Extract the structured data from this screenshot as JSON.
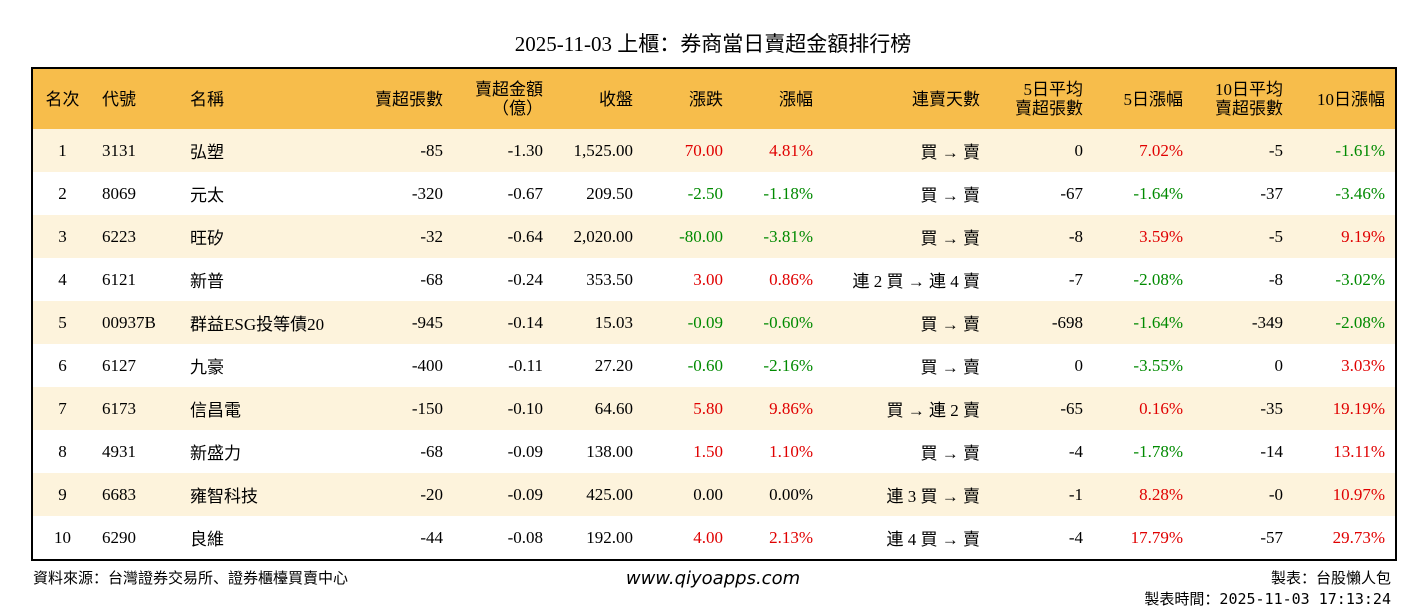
{
  "header": {
    "title": "2025-11-03 上櫃：券商當日賣超金額排行榜"
  },
  "table": {
    "columns": [
      "名次",
      "代號",
      "名稱",
      "賣超張數",
      "賣超金額\n（億）",
      "收盤",
      "漲跌",
      "漲幅",
      "連賣天數",
      "5日平均\n賣超張數",
      "5日漲幅",
      "10日平均\n賣超張數",
      "10日漲幅"
    ],
    "rows": [
      [
        "1",
        "3131",
        "弘塑",
        "-85",
        "-1.30",
        "1,525.00",
        "70.00",
        "4.81%",
        "買 → 賣",
        "0",
        "7.02%",
        "-5",
        "-1.61%"
      ],
      [
        "2",
        "8069",
        "元太",
        "-320",
        "-0.67",
        "209.50",
        "-2.50",
        "-1.18%",
        "買 → 賣",
        "-67",
        "-1.64%",
        "-37",
        "-3.46%"
      ],
      [
        "3",
        "6223",
        "旺矽",
        "-32",
        "-0.64",
        "2,020.00",
        "-80.00",
        "-3.81%",
        "買 → 賣",
        "-8",
        "3.59%",
        "-5",
        "9.19%"
      ],
      [
        "4",
        "6121",
        "新普",
        "-68",
        "-0.24",
        "353.50",
        "3.00",
        "0.86%",
        "連 2 買 → 連 4 賣",
        "-7",
        "-2.08%",
        "-8",
        "-3.02%"
      ],
      [
        "5",
        "00937B",
        "群益ESG投等債20",
        "-945",
        "-0.14",
        "15.03",
        "-0.09",
        "-0.60%",
        "買 → 賣",
        "-698",
        "-1.64%",
        "-349",
        "-2.08%"
      ],
      [
        "6",
        "6127",
        "九豪",
        "-400",
        "-0.11",
        "27.20",
        "-0.60",
        "-2.16%",
        "買 → 賣",
        "0",
        "-3.55%",
        "0",
        "3.03%"
      ],
      [
        "7",
        "6173",
        "信昌電",
        "-150",
        "-0.10",
        "64.60",
        "5.80",
        "9.86%",
        "買 → 連 2 賣",
        "-65",
        "0.16%",
        "-35",
        "19.19%"
      ],
      [
        "8",
        "4931",
        "新盛力",
        "-68",
        "-0.09",
        "138.00",
        "1.50",
        "1.10%",
        "買 → 賣",
        "-4",
        "-1.78%",
        "-14",
        "13.11%"
      ],
      [
        "9",
        "6683",
        "雍智科技",
        "-20",
        "-0.09",
        "425.00",
        "0.00",
        "0.00%",
        "連 3 買 → 賣",
        "-1",
        "8.28%",
        "-0",
        "10.97%"
      ],
      [
        "10",
        "6290",
        "良維",
        "-44",
        "-0.08",
        "192.00",
        "4.00",
        "2.13%",
        "連 4 買 → 賣",
        "-4",
        "17.79%",
        "-57",
        "29.73%"
      ]
    ]
  },
  "footer": {
    "source": "資料來源：台灣證券交易所、證券櫃檯買賣中心",
    "website": "www.qiyoapps.com",
    "author": "製表：台股懶人包",
    "time": "製表時間：2025-11-03 17:13:24"
  }
}
